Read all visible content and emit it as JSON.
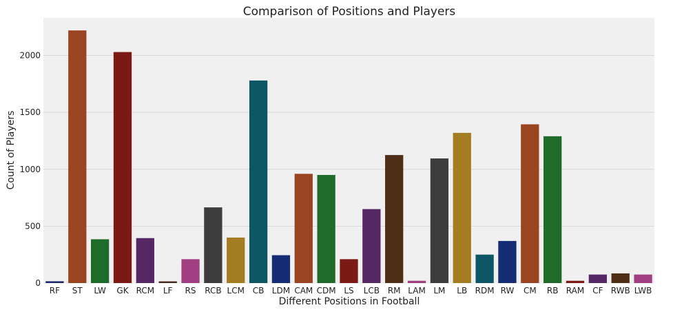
{
  "chart_data": {
    "type": "bar",
    "title": "Comparison of Positions and Players",
    "xlabel": "Different Positions in Football",
    "ylabel": "Count of Players",
    "categories": [
      "RF",
      "ST",
      "LW",
      "GK",
      "RCM",
      "LF",
      "RS",
      "RCB",
      "LCM",
      "CB",
      "LDM",
      "CAM",
      "CDM",
      "LS",
      "LCB",
      "RM",
      "LAM",
      "LM",
      "LB",
      "RDM",
      "RW",
      "CM",
      "RB",
      "RAM",
      "CF",
      "RWB",
      "LWB"
    ],
    "values": [
      16,
      2220,
      385,
      2030,
      395,
      15,
      210,
      665,
      400,
      1780,
      245,
      960,
      950,
      210,
      650,
      1125,
      20,
      1095,
      1320,
      250,
      370,
      1395,
      1290,
      20,
      75,
      85,
      75
    ],
    "colors": [
      "#1d2a6e",
      "#9b4421",
      "#1f6b2a",
      "#7b1a14",
      "#552765",
      "#472a19",
      "#a23f83",
      "#3d3d3d",
      "#a47c22",
      "#0d5665",
      "#132c74",
      "#9b4421",
      "#1f6b2a",
      "#7b1a14",
      "#552765",
      "#4f2d16",
      "#a23f83",
      "#3d3d3d",
      "#a47c22",
      "#0d5665",
      "#132c74",
      "#9b4421",
      "#1f6b2a",
      "#7b1a14",
      "#552765",
      "#4f2d16",
      "#a23f83"
    ],
    "ylim": [
      0,
      2330
    ],
    "yticks": [
      0,
      500,
      1000,
      1500,
      2000
    ],
    "grid": true,
    "background": "#f0f0f0",
    "gridcolor": "#d8d8d8"
  }
}
